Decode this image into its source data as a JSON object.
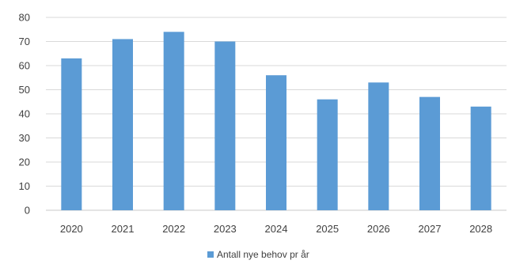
{
  "chart_data": {
    "type": "bar",
    "title": "",
    "xlabel": "",
    "ylabel": "",
    "categories": [
      "2020",
      "2021",
      "2022",
      "2023",
      "2024",
      "2025",
      "2026",
      "2027",
      "2028"
    ],
    "series": [
      {
        "name": "Antall nye behov pr år",
        "values": [
          63,
          71,
          74,
          70,
          56,
          46,
          53,
          47,
          43
        ],
        "color": "#5b9bd5"
      }
    ],
    "ylim": [
      0,
      80
    ],
    "yticks": [
      0,
      10,
      20,
      30,
      40,
      50,
      60,
      70,
      80
    ],
    "grid": true,
    "legend_position": "bottom-center"
  }
}
